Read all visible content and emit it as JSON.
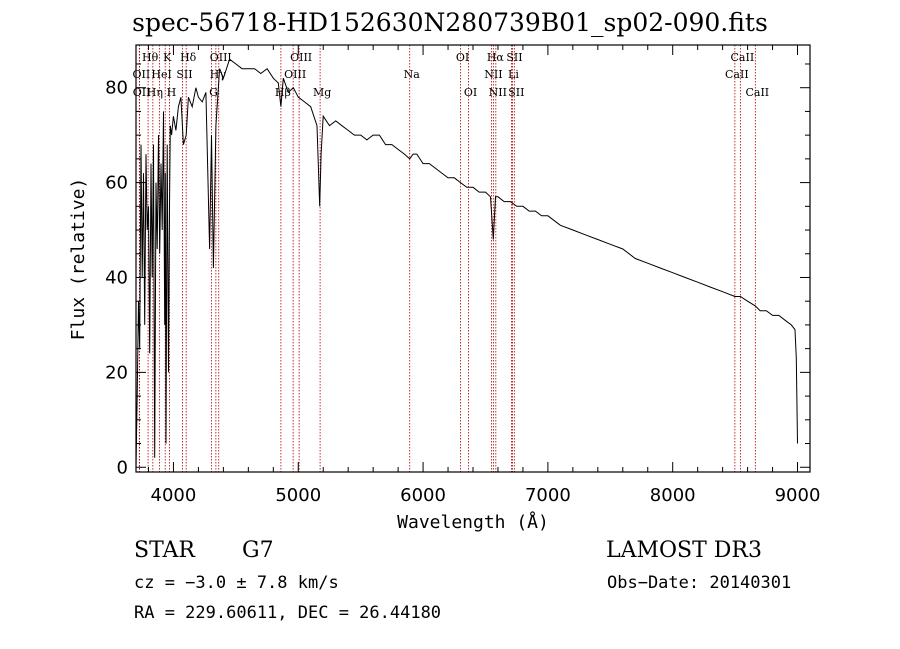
{
  "title": "spec-56718-HD152630N280739B01_sp02-090.fits",
  "info": {
    "object_type": "STAR",
    "spectral_class": "G7",
    "survey": "LAMOST DR3",
    "cz": "cz = −3.0 ± 7.8 km/s",
    "obs_date": "Obs−Date: 20140301",
    "ra_dec": "RA = 229.60611, DEC =  26.44180"
  },
  "colors": {
    "spectrum": "#000000",
    "lines": "#b30000",
    "frame": "#000000"
  },
  "chart_data": {
    "type": "line",
    "title": "spec-56718-HD152630N280739B01_sp02-090.fits",
    "xlabel": "Wavelength (Å)",
    "ylabel": "Flux (relative)",
    "xlim": [
      3700,
      9100
    ],
    "ylim": [
      -1,
      89
    ],
    "xticks": [
      4000,
      5000,
      6000,
      7000,
      8000,
      9000
    ],
    "yticks": [
      0,
      20,
      40,
      60,
      80
    ],
    "grid": false,
    "series": [
      {
        "name": "spectrum",
        "x": [
          3700,
          3710,
          3720,
          3730,
          3740,
          3750,
          3760,
          3770,
          3780,
          3790,
          3800,
          3810,
          3820,
          3830,
          3840,
          3850,
          3860,
          3870,
          3880,
          3890,
          3900,
          3910,
          3920,
          3930,
          3935,
          3940,
          3950,
          3960,
          3968,
          3975,
          3985,
          4000,
          4020,
          4040,
          4060,
          4080,
          4102,
          4120,
          4150,
          4180,
          4200,
          4230,
          4260,
          4290,
          4305,
          4320,
          4340,
          4370,
          4400,
          4450,
          4500,
          4550,
          4600,
          4650,
          4700,
          4750,
          4800,
          4840,
          4861,
          4880,
          4920,
          4960,
          5000,
          5050,
          5100,
          5150,
          5172,
          5183,
          5200,
          5250,
          5300,
          5350,
          5400,
          5450,
          5500,
          5550,
          5600,
          5650,
          5700,
          5750,
          5800,
          5850,
          5893,
          5920,
          5950,
          6000,
          6050,
          6100,
          6150,
          6200,
          6250,
          6300,
          6350,
          6400,
          6450,
          6500,
          6540,
          6563,
          6580,
          6600,
          6650,
          6700,
          6750,
          6800,
          6850,
          6900,
          6950,
          7000,
          7100,
          7200,
          7300,
          7400,
          7500,
          7600,
          7700,
          7800,
          7900,
          8000,
          8100,
          8200,
          8300,
          8400,
          8498,
          8542,
          8600,
          8662,
          8700,
          8750,
          8800,
          8850,
          8900,
          8950,
          8980,
          8990,
          9000
        ],
        "values": [
          0,
          15,
          35,
          25,
          68,
          40,
          62,
          30,
          66,
          50,
          55,
          24,
          64,
          40,
          68,
          2,
          60,
          46,
          70,
          45,
          64,
          50,
          75,
          30,
          62,
          5,
          68,
          20,
          55,
          72,
          70,
          74,
          71,
          76,
          78,
          68,
          70,
          78,
          76,
          80,
          78,
          77,
          79,
          46,
          70,
          42,
          72,
          84,
          82,
          86,
          85,
          84,
          84,
          84,
          83,
          84,
          82,
          81,
          76,
          82,
          79,
          80,
          78,
          77,
          76,
          72,
          55,
          66,
          74,
          72,
          73,
          72,
          71,
          70,
          70,
          69,
          70,
          70,
          68,
          68,
          67,
          66,
          65,
          66,
          66,
          64,
          64,
          63,
          62,
          61,
          61,
          60,
          59,
          59,
          58,
          58,
          57,
          48,
          57,
          57,
          56,
          56,
          55,
          55,
          54,
          54,
          53,
          53,
          51,
          50,
          49,
          48,
          47,
          46,
          44,
          43,
          42,
          41,
          40,
          39,
          38,
          37,
          36,
          36,
          35,
          34,
          33,
          33,
          32,
          32,
          31,
          30,
          29,
          23,
          5
        ]
      }
    ],
    "lines": [
      {
        "label": "Hθ",
        "wavelength": 3797,
        "row": 0
      },
      {
        "label": "Hη",
        "wavelength": 3835,
        "row": 2
      },
      {
        "label": "OII",
        "wavelength": 3727,
        "row": 1
      },
      {
        "label": "OII",
        "wavelength": 3729,
        "row": 2
      },
      {
        "label": "HeI",
        "wavelength": 3889,
        "row": 1
      },
      {
        "label": "K",
        "wavelength": 3934,
        "row": 0
      },
      {
        "label": "H",
        "wavelength": 3968,
        "row": 2
      },
      {
        "label": "SII",
        "wavelength": 4072,
        "row": 1
      },
      {
        "label": "Hδ",
        "wavelength": 4102,
        "row": 0
      },
      {
        "label": "G",
        "wavelength": 4305,
        "row": 2
      },
      {
        "label": "Hγ",
        "wavelength": 4340,
        "row": 1
      },
      {
        "label": "OIII",
        "wavelength": 4363,
        "row": 0
      },
      {
        "label": "Hβ",
        "wavelength": 4861,
        "row": 2
      },
      {
        "label": "OIII",
        "wavelength": 4959,
        "row": 1
      },
      {
        "label": "OIII",
        "wavelength": 5007,
        "row": 0
      },
      {
        "label": "Mg",
        "wavelength": 5175,
        "row": 2
      },
      {
        "label": "Na",
        "wavelength": 5893,
        "row": 1
      },
      {
        "label": "OI",
        "wavelength": 6300,
        "row": 0
      },
      {
        "label": "OI",
        "wavelength": 6364,
        "row": 2
      },
      {
        "label": "NII",
        "wavelength": 6548,
        "row": 1
      },
      {
        "label": "Hα",
        "wavelength": 6563,
        "row": 0
      },
      {
        "label": "NII",
        "wavelength": 6583,
        "row": 2
      },
      {
        "label": "Li",
        "wavelength": 6708,
        "row": 1
      },
      {
        "label": "SII",
        "wavelength": 6716,
        "row": 0
      },
      {
        "label": "SII",
        "wavelength": 6731,
        "row": 2
      },
      {
        "label": "CaII",
        "wavelength": 8498,
        "row": 1
      },
      {
        "label": "CaII",
        "wavelength": 8542,
        "row": 0
      },
      {
        "label": "CaII",
        "wavelength": 8662,
        "row": 2
      }
    ]
  }
}
